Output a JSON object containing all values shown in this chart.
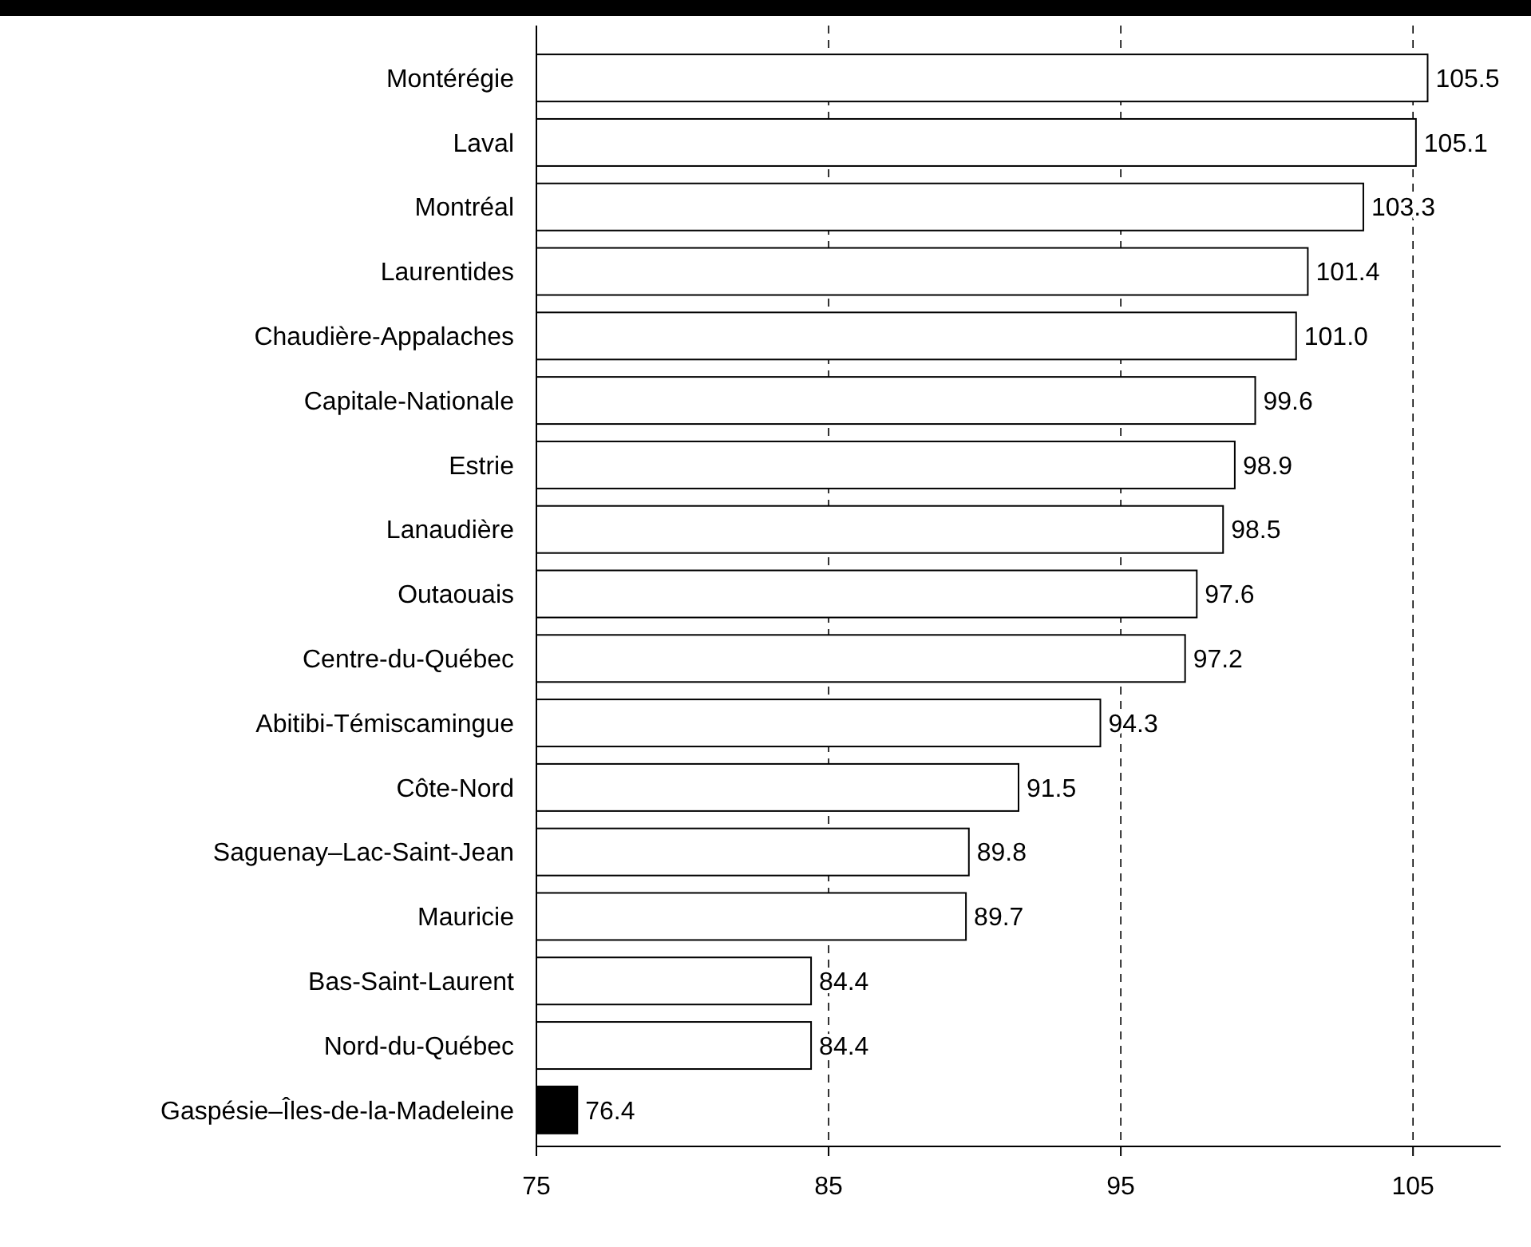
{
  "chart_data": {
    "type": "bar",
    "orientation": "horizontal",
    "categories": [
      "Montérégie",
      "Laval",
      "Montréal",
      "Laurentides",
      "Chaudière-Appalaches",
      "Capitale-Nationale",
      "Estrie",
      "Lanaudière",
      "Outaouais",
      "Centre-du-Québec",
      "Abitibi-Témiscamingue",
      "Côte-Nord",
      "Saguenay–Lac-Saint-Jean",
      "Mauricie",
      "Bas-Saint-Laurent",
      "Nord-du-Québec",
      "Gaspésie–Îles-de-la-Madeleine"
    ],
    "values": [
      105.5,
      105.1,
      103.3,
      101.4,
      101.0,
      99.6,
      98.9,
      98.5,
      97.6,
      97.2,
      94.3,
      91.5,
      89.8,
      89.7,
      84.4,
      84.4,
      76.4
    ],
    "value_labels": [
      "105.5",
      "105.1",
      "103.3",
      "101.4",
      "101.0",
      "99.6",
      "98.9",
      "98.5",
      "97.6",
      "97.2",
      "94.3",
      "91.5",
      "89.8",
      "89.7",
      "84.4",
      "84.4",
      "76.4"
    ],
    "colors": [
      "#ffffff",
      "#ffffff",
      "#ffffff",
      "#ffffff",
      "#ffffff",
      "#ffffff",
      "#ffffff",
      "#ffffff",
      "#ffffff",
      "#ffffff",
      "#ffffff",
      "#ffffff",
      "#ffffff",
      "#ffffff",
      "#ffffff",
      "#ffffff",
      "#000000"
    ],
    "xlim": [
      75,
      108
    ],
    "xticks": [
      75,
      85,
      95,
      105
    ],
    "grid": "x"
  }
}
